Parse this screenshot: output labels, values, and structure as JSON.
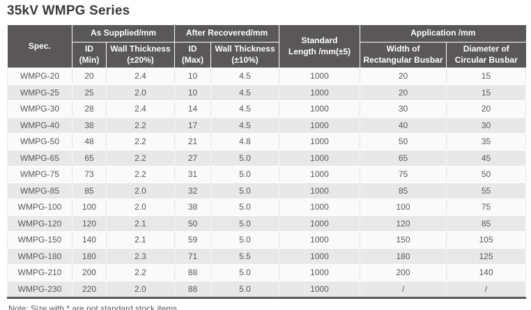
{
  "title": "35kV WMPG Series",
  "note": "Note: Size with * are not standard stock items.",
  "colors": {
    "header_bg": "#595757",
    "header_text": "#ffffff",
    "row_base": "#fafafa",
    "row_alt": "#e9e8e8",
    "body_text": "#595757",
    "title_text": "#3a3a3a",
    "bottom_border": "#595757"
  },
  "table": {
    "headers": {
      "spec": "Spec.",
      "as_supplied": "As Supplied/mm",
      "after_recovered": "After Recovered/mm",
      "standard_length": "Standard\nLength /mm(±5)",
      "application": "Application /mm",
      "id_min": "ID\n(Min)",
      "wall_thickness_supplied": "Wall Thickness\n(±20%)",
      "id_max": "ID\n(Max)",
      "wall_thickness_recovered": "Wall Thickness\n(±10%)",
      "width_rectangular_busbar": "Width of\nRectangular Busbar",
      "diameter_circular_busbar": "Diameter of\nCircular Busbar"
    },
    "column_keys": [
      "spec",
      "id_min",
      "wall_thickness_supplied",
      "id_max",
      "wall_thickness_recovered",
      "standard_length",
      "width_rectangular_busbar",
      "diameter_circular_busbar"
    ],
    "rows": [
      [
        "WMPG-20",
        "20",
        "2.4",
        "10",
        "4.5",
        "1000",
        "20",
        "15"
      ],
      [
        "WMPG-25",
        "25",
        "2.0",
        "10",
        "4.5",
        "1000",
        "20",
        "15"
      ],
      [
        "WMPG-30",
        "28",
        "2.4",
        "14",
        "4.5",
        "1000",
        "30",
        "20"
      ],
      [
        "WMPG-40",
        "38",
        "2.2",
        "17",
        "4.5",
        "1000",
        "40",
        "30"
      ],
      [
        "WMPG-50",
        "48",
        "2.2",
        "21",
        "4.8",
        "1000",
        "50",
        "35"
      ],
      [
        "WMPG-65",
        "65",
        "2.2",
        "27",
        "5.0",
        "1000",
        "65",
        "45"
      ],
      [
        "WMPG-75",
        "73",
        "2.2",
        "31",
        "5.0",
        "1000",
        "75",
        "50"
      ],
      [
        "WMPG-85",
        "85",
        "2.0",
        "32",
        "5.0",
        "1000",
        "85",
        "55"
      ],
      [
        "WMPG-100",
        "100",
        "2.0",
        "38",
        "5.0",
        "1000",
        "100",
        "75"
      ],
      [
        "WMPG-120",
        "120",
        "2.1",
        "50",
        "5.0",
        "1000",
        "120",
        "85"
      ],
      [
        "WMPG-150",
        "140",
        "2.1",
        "59",
        "5.0",
        "1000",
        "150",
        "105"
      ],
      [
        "WMPG-180",
        "180",
        "2.3",
        "71",
        "5.5",
        "1000",
        "180",
        "125"
      ],
      [
        "WMPG-210",
        "200",
        "2.2",
        "88",
        "5.0",
        "1000",
        "200",
        "140"
      ],
      [
        "WMPG-230",
        "220",
        "2.0",
        "88",
        "5.0",
        "1000",
        "/",
        "/"
      ]
    ]
  }
}
